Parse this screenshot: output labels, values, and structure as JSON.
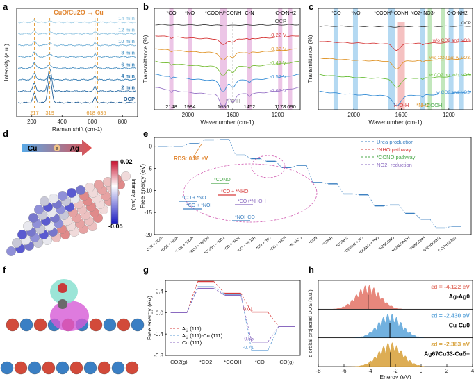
{
  "panel_letters": [
    "a",
    "b",
    "c",
    "d",
    "e",
    "f",
    "g",
    "h"
  ],
  "chart_data": [
    {
      "id": "a",
      "type": "line",
      "title": "CuO/Cu2O → Cu",
      "xlabel": "Raman shift (cm-1)",
      "ylabel": "Intensity (a.u.)",
      "xlim": [
        100,
        900
      ],
      "xticks": [
        200,
        400,
        600,
        800
      ],
      "series": [
        {
          "name": "OCP",
          "color": "#1f5b94"
        },
        {
          "name": "2 min",
          "color": "#2d6ea6"
        },
        {
          "name": "4 min",
          "color": "#3a80b5"
        },
        {
          "name": "6 min",
          "color": "#4d91c2"
        },
        {
          "name": "8 min",
          "color": "#62a3cd"
        },
        {
          "name": "10 min",
          "color": "#78b3d8"
        },
        {
          "name": "12 min",
          "color": "#8fc3e0"
        },
        {
          "name": "14 min",
          "color": "#a6d1e8"
        }
      ],
      "peaks": [
        217,
        319,
        618,
        635
      ]
    },
    {
      "id": "b",
      "type": "line",
      "xlabel": "Wavenumber (cm-1)",
      "ylabel": "Transmittance (%)",
      "xlim": [
        2300,
        1000
      ],
      "xticks": [
        2000,
        1600,
        1200
      ],
      "top_labels": [
        "*CO",
        "*NO",
        "*COOH/*CONH",
        "C-N",
        "C-O",
        "-NH2"
      ],
      "bottom_labels": [
        "2148",
        "1984",
        "1686",
        "1452",
        "1178",
        "1090"
      ],
      "band_centers": [
        2148,
        1984,
        1686,
        1452,
        1178,
        1090
      ],
      "hoh_label": "H-O-H",
      "hoh_pos": 1600,
      "series": [
        {
          "name": "OCP",
          "color": "#444444"
        },
        {
          "name": "-0.22 V",
          "color": "#d63a3a"
        },
        {
          "name": "-0.32 V",
          "color": "#e0962c"
        },
        {
          "name": "-0.42 V",
          "color": "#7cbf3d"
        },
        {
          "name": "-0.52 V",
          "color": "#3a8fd6"
        },
        {
          "name": "-0.62 V",
          "color": "#9a78c8"
        }
      ]
    },
    {
      "id": "c",
      "type": "line",
      "xlabel": "Wavenumber (cm-1)",
      "ylabel": "Transmittance (%)",
      "xlim": [
        2300,
        1000
      ],
      "xticks": [
        2000,
        1600,
        1200
      ],
      "top_labels": [
        "*CO",
        "*NO",
        "*COOH/*CONH",
        "NO2- NO3-",
        "C-O",
        "-NH2"
      ],
      "bottom_labels": [
        "H-O-H",
        "*NH2",
        "*COOH"
      ],
      "series": [
        {
          "name": "OCP",
          "color": "#444444"
        },
        {
          "name": "w/o CO2 and NO3-",
          "color": "#d63a3a"
        },
        {
          "name": "w/o CO2 but w NO3-",
          "color": "#e0962c"
        },
        {
          "name": "w CO2 but w/o NO3-",
          "color": "#6cbf3d"
        },
        {
          "name": "w CO2 and NO3-",
          "color": "#3a8fd6"
        }
      ]
    },
    {
      "id": "d",
      "type": "heatmap",
      "arrow_left": "Cu",
      "arrow_right": "Ag",
      "colorbar_max": "0.02",
      "colorbar_min": "-0.05",
      "colorbar_label": "Intensity (a.u.)"
    },
    {
      "id": "e",
      "type": "line",
      "ylabel": "Free energy (eV)",
      "ylim": [
        -20,
        2
      ],
      "yticks": [
        0,
        -5,
        -10,
        -15,
        -20
      ],
      "legend": [
        {
          "name": "Urea production",
          "color": "#3a7fc0"
        },
        {
          "name": "*NHO pathway",
          "color": "#d63a3a"
        },
        {
          "name": "*CONO pathway",
          "color": "#4aa84a"
        },
        {
          "name": "NO2- reduction",
          "color": "#8a6ac0"
        }
      ],
      "rds_label": "RDS: 0.88 eV",
      "x_labels": [
        "CO2 + NO3-",
        "*CO2 + NO3-",
        "*CO2 + *NO3-",
        "*CO2 + *NO2H",
        "*COOH + *NO2",
        "*CO + *NO2",
        "*CO + *NO2H",
        "*CO + *NO",
        "*CO + *NOH",
        "*NOHCO",
        "*CON",
        "*CONH",
        "*CONH2",
        "*CONH2 + NO",
        "*CONH2 + *NO",
        "*H2NCONO",
        "*H2NCONOH",
        "*H2NCONH",
        "*H2NCONH2",
        "CO(NH2)2(g)"
      ],
      "energies": [
        0,
        0.0,
        0.6,
        1.45,
        1.5,
        -2.0,
        -2.8,
        -3.4,
        -4.8,
        -4.3,
        -8.2,
        -8.5,
        -10.8,
        -11.0,
        -13.5,
        -13.3,
        -15.2,
        -16.5,
        -18.5,
        -18.1
      ],
      "inset_labels": [
        "*CONO",
        "*CO + *NHO",
        "*CO + *NO",
        "*CO + *NOH",
        "*CO+*NHOH",
        "*NOHCO"
      ]
    },
    {
      "id": "g",
      "type": "line",
      "ylabel": "Free energy (eV)",
      "ylim": [
        -0.8,
        0.6
      ],
      "yticks": [
        -0.8,
        -0.4,
        0.0,
        0.4
      ],
      "categories": [
        "CO2(g)",
        "*CO2",
        "*COOH",
        "*CO",
        "CO(g)"
      ],
      "series": [
        {
          "name": "Ag (111)",
          "color": "#d63a3a",
          "values": [
            0,
            0.58,
            0.36,
            0.01,
            -0.26
          ]
        },
        {
          "name": "Ag (111)-Cu (111)",
          "color": "#5b9bd5",
          "values": [
            0,
            0.48,
            0.34,
            -0.71,
            -0.26
          ]
        },
        {
          "name": "Cu (111)",
          "color": "#8a6ac0",
          "values": [
            0,
            0.45,
            0.32,
            -0.55,
            -0.26
          ]
        }
      ],
      "value_labels": [
        "0.01",
        "-0.55",
        "-0.71"
      ]
    },
    {
      "id": "h",
      "type": "area",
      "xlabel": "Energy (eV)",
      "ylabel": "d orbital projected DOS (a.u.)",
      "xlim": [
        -8,
        4
      ],
      "xticks": [
        -8,
        -6,
        -4,
        -2,
        0,
        2,
        4
      ],
      "series": [
        {
          "name": "Ag-Ag0",
          "ed_label": "εd = -4.122 eV",
          "ed": -4.122,
          "color": "#e47a6e"
        },
        {
          "name": "Cu-Cu0",
          "ed_label": "εd = -2.430 eV",
          "ed": -2.43,
          "color": "#63a8dc"
        },
        {
          "name": "Ag67Cu33-Cuδ+",
          "ed_label": "εd = -2.383 eV",
          "ed": -2.383,
          "color": "#d9a441"
        }
      ]
    }
  ]
}
